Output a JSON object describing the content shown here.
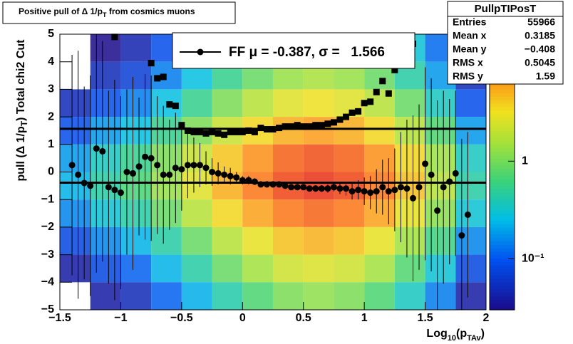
{
  "chart_data": {
    "type": "heatmap-profile",
    "title_parts": [
      "Positive pull of Δ 1/p",
      "T",
      " from cosmics muons"
    ],
    "ylabel_parts": [
      "pull (Δ 1/p",
      "T",
      ")  Total chi2 Cut"
    ],
    "xlabel_parts": [
      "Log",
      "10",
      "(p",
      "TAv",
      ")"
    ],
    "xlim": [
      -1.5,
      2
    ],
    "ylim": [
      -5,
      5
    ],
    "xticks": [
      {
        "value": -1.5,
        "label": "−1.5"
      },
      {
        "value": -1,
        "label": "−1"
      },
      {
        "value": -0.5,
        "label": "−0.5"
      },
      0,
      0.5,
      1,
      1.5,
      2
    ],
    "yticks": [
      {
        "value": -5,
        "label": "−5"
      },
      {
        "value": -4,
        "label": "−4"
      },
      {
        "value": -3,
        "label": "−3"
      },
      {
        "value": -2,
        "label": "−2"
      },
      {
        "value": -1,
        "label": "−1"
      },
      0,
      1,
      2,
      3,
      4,
      5
    ],
    "zlim": [
      0.03,
      20
    ],
    "zticks": [
      {
        "value": 0.1,
        "label": "10⁻¹"
      },
      1
    ],
    "log_z": true,
    "xbins": [
      -1.5,
      -1.25,
      -1,
      -0.75,
      -0.5,
      -0.25,
      0,
      0.25,
      0.5,
      0.75,
      1,
      1.25,
      1.5,
      1.75,
      2
    ],
    "ybins": [
      5,
      4,
      3,
      2,
      1,
      0,
      -1,
      -2,
      -3,
      -4,
      -5
    ],
    "z": [
      [
        0.015,
        0.03,
        0.045,
        0.09,
        0.18,
        0.36,
        0.6,
        0.9,
        1.05,
        0.9,
        0.6,
        0.3,
        0.12,
        0.03
      ],
      [
        0.02,
        0.05,
        0.07,
        0.14,
        0.27,
        0.54,
        0.9,
        1.35,
        1.58,
        1.35,
        0.9,
        0.45,
        0.18,
        0.05
      ],
      [
        0.05,
        0.09,
        0.14,
        0.27,
        0.54,
        1.08,
        1.8,
        2.7,
        3.15,
        2.7,
        1.8,
        0.9,
        0.36,
        0.09
      ],
      [
        0.09,
        0.18,
        0.27,
        0.54,
        1.08,
        2.16,
        3.6,
        5.4,
        6.3,
        5.4,
        3.6,
        1.8,
        0.72,
        0.18
      ],
      [
        0.18,
        0.36,
        0.54,
        1.08,
        2.16,
        4.32,
        7.2,
        10.8,
        12.6,
        10.8,
        7.2,
        3.6,
        1.44,
        0.36
      ],
      [
        0.23,
        0.45,
        0.68,
        1.35,
        2.7,
        5.4,
        9,
        13.5,
        15.8,
        13.5,
        9,
        4.5,
        1.8,
        0.45
      ],
      [
        0.15,
        0.3,
        0.45,
        0.9,
        1.8,
        3.6,
        6,
        9,
        10.5,
        9,
        6,
        3,
        1.2,
        0.3
      ],
      [
        0.08,
        0.15,
        0.23,
        0.45,
        0.9,
        1.8,
        3,
        4.5,
        5.25,
        4.5,
        3,
        1.5,
        0.6,
        0.15
      ],
      [
        0.04,
        0.08,
        0.11,
        0.23,
        0.45,
        0.9,
        1.5,
        2.25,
        2.6,
        2.25,
        1.5,
        0.75,
        0.3,
        0.08
      ],
      [
        0.02,
        0.04,
        0.05,
        0.11,
        0.22,
        0.43,
        0.72,
        1.08,
        1.26,
        1.08,
        0.72,
        0.36,
        0.14,
        0.04
      ]
    ],
    "profile_mean": {
      "color": "#000000",
      "x": [
        -1.4,
        -1.35,
        -1.3,
        -1.25,
        -1.2,
        -1.15,
        -1.1,
        -1.05,
        -1.0,
        -0.95,
        -0.9,
        -0.85,
        -0.8,
        -0.75,
        -0.7,
        -0.65,
        -0.6,
        -0.55,
        -0.5,
        -0.45,
        -0.4,
        -0.35,
        -0.3,
        -0.25,
        -0.2,
        -0.15,
        -0.1,
        -0.05,
        0,
        0.05,
        0.1,
        0.15,
        0.2,
        0.25,
        0.3,
        0.35,
        0.4,
        0.45,
        0.5,
        0.55,
        0.6,
        0.65,
        0.7,
        0.75,
        0.8,
        0.85,
        0.9,
        0.95,
        1.0,
        1.05,
        1.1,
        1.15,
        1.2,
        1.25,
        1.3,
        1.35,
        1.4,
        1.45,
        1.5,
        1.55,
        1.6,
        1.65,
        1.7,
        1.75,
        1.8,
        1.85
      ],
      "values": [
        0.25,
        -0.1,
        -0.4,
        -0.5,
        0.85,
        0.75,
        -0.55,
        -0.65,
        -0.75,
        0.0,
        -0.05,
        0.2,
        0.55,
        0.5,
        0.25,
        -0.1,
        -0.1,
        0.15,
        0.1,
        0.25,
        0.25,
        0.25,
        0.15,
        0.0,
        -0.05,
        -0.1,
        -0.15,
        -0.2,
        -0.3,
        -0.3,
        -0.35,
        -0.45,
        -0.45,
        -0.45,
        -0.45,
        -0.5,
        -0.55,
        -0.55,
        -0.55,
        -0.6,
        -0.6,
        -0.6,
        -0.6,
        -0.55,
        -0.6,
        -0.6,
        -0.7,
        -0.65,
        -0.7,
        -0.75,
        -0.7,
        -0.55,
        -0.7,
        -0.65,
        -0.55,
        -0.6,
        -0.95,
        -0.55,
        0.3,
        -0.1,
        -1.4,
        -0.55,
        -0.35,
        -0.05,
        -2.3,
        -1.55
      ],
      "errors": [
        4,
        4.5,
        3.5,
        4,
        4.5,
        4,
        3.5,
        4,
        3.5,
        3,
        3.5,
        2.5,
        3,
        3,
        2.5,
        2.5,
        2,
        2,
        1.5,
        1.2,
        1,
        0.8,
        0.6,
        0.5,
        0.4,
        0.3,
        0.3,
        0.2,
        0.15,
        0.15,
        0.12,
        0.1,
        0.1,
        0.1,
        0.1,
        0.1,
        0.1,
        0.1,
        0.1,
        0.1,
        0.12,
        0.12,
        0.15,
        0.15,
        0.2,
        0.25,
        0.3,
        0.35,
        0.5,
        0.6,
        0.8,
        1,
        1.2,
        1.5,
        2,
        2.5,
        3,
        3,
        3.5,
        3.5,
        4,
        3.5,
        3,
        3,
        3.5,
        3
      ]
    },
    "profile_sigma": {
      "color": "#000000",
      "x": [
        -1.05,
        -0.75,
        -0.7,
        -0.65,
        -0.6,
        -0.55,
        -0.5,
        -0.45,
        -0.4,
        -0.35,
        -0.3,
        -0.25,
        -0.2,
        -0.15,
        -0.1,
        -0.05,
        0,
        0.05,
        0.1,
        0.15,
        0.2,
        0.25,
        0.3,
        0.35,
        0.4,
        0.45,
        0.5,
        0.55,
        0.6,
        0.65,
        0.7,
        0.75,
        0.8,
        0.85,
        0.9,
        0.95,
        1.0,
        1.05,
        1.1,
        1.15,
        1.2,
        1.25,
        1.3,
        1.35,
        1.4
      ],
      "values": [
        4.9,
        3.95,
        3.4,
        3.45,
        2.45,
        2.4,
        1.7,
        1.5,
        1.45,
        1.45,
        1.4,
        1.45,
        1.4,
        1.35,
        1.45,
        1.45,
        1.45,
        1.5,
        1.45,
        1.6,
        1.55,
        1.55,
        1.6,
        1.65,
        1.65,
        1.7,
        1.65,
        1.65,
        1.7,
        1.7,
        1.75,
        1.8,
        1.9,
        2.0,
        2.15,
        2.2,
        2.5,
        2.55,
        2.9,
        3.3,
        2.85,
        3.7,
        4.25,
        4.25,
        4.65
      ]
    },
    "fit": {
      "mu": -0.387,
      "sigma": 1.566
    },
    "legend_label": "FF μ = -0.387, σ =   1.566",
    "stats": {
      "title": "PullpTIPosT",
      "rows": [
        [
          "Entries",
          "55966"
        ],
        [
          "Mean x",
          "0.3185"
        ],
        [
          "Mean y",
          "−0.408"
        ],
        [
          "RMS x",
          "0.5045"
        ],
        [
          "RMS y",
          "1.59"
        ]
      ]
    }
  }
}
